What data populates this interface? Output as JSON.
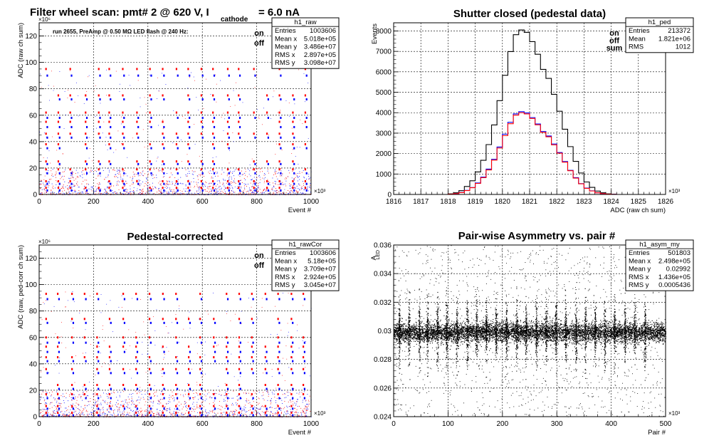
{
  "chart_data": [
    {
      "type": "scatter",
      "title": "Filter wheel scan: pmt#   2 @   620 V, I",
      "title_sub": "cathode",
      "title_tail": "= 6.0 nA",
      "annotation": "run 2655, PreAmp @ 0.50 MΩ   LED flash @  240 Hz:",
      "xlabel": "Event #",
      "ylabel": "ADC (raw ch sum)",
      "x_multiplier": "×10³",
      "y_multiplier": "×10⁶",
      "xlim": [
        0,
        1000000
      ],
      "ylim": [
        0,
        130000000
      ],
      "x_ticks": [
        "0",
        "200",
        "400",
        "600",
        "800",
        "1000"
      ],
      "y_ticks": [
        "0",
        "20",
        "40",
        "60",
        "80",
        "100",
        "120"
      ],
      "grid": true,
      "legend_position": "top-right",
      "series": [
        {
          "name": "on",
          "color": "#ff0000"
        },
        {
          "name": "off",
          "color": "#0000ff"
        }
      ],
      "levels_on": [
        95,
        75,
        62,
        55,
        46,
        38,
        25,
        19,
        10,
        5
      ],
      "levels_off": [
        90,
        72,
        58,
        51,
        43,
        35,
        23,
        16,
        8,
        3
      ],
      "stats": {
        "title": "h1_raw",
        "rows": [
          {
            "label": "Entries",
            "value": "1003606"
          },
          {
            "label": "Mean x",
            "value": "5.018e+05"
          },
          {
            "label": "Mean y",
            "value": "3.486e+07"
          },
          {
            "label": "RMS x",
            "value": "2.897e+05"
          },
          {
            "label": "RMS y",
            "value": "3.098e+07"
          }
        ]
      }
    },
    {
      "type": "line",
      "title": "Shutter closed (pedestal data)",
      "xlabel": "ADC (raw ch sum)",
      "ylabel": "Events",
      "x_multiplier": "×10³",
      "xlim": [
        1816,
        1826
      ],
      "ylim": [
        0,
        8400
      ],
      "x_ticks": [
        "1816",
        "1817",
        "1818",
        "1819",
        "1820",
        "1821",
        "1822",
        "1823",
        "1824",
        "1825",
        "1826"
      ],
      "y_ticks": [
        "0",
        "1000",
        "2000",
        "3000",
        "4000",
        "5000",
        "6000",
        "7000",
        "8000"
      ],
      "grid": true,
      "legend_position": "top-right",
      "x": [
        1818.0,
        1818.2,
        1818.4,
        1818.6,
        1818.8,
        1819.0,
        1819.2,
        1819.4,
        1819.6,
        1819.8,
        1820.0,
        1820.2,
        1820.4,
        1820.6,
        1820.8,
        1821.0,
        1821.2,
        1821.4,
        1821.6,
        1821.8,
        1822.0,
        1822.2,
        1822.4,
        1822.6,
        1822.8,
        1823.0,
        1823.2,
        1823.4,
        1823.6,
        1823.8,
        1824.0
      ],
      "series": [
        {
          "name": "on",
          "color": "#ff0000",
          "values": [
            15,
            40,
            90,
            190,
            330,
            540,
            820,
            1200,
            1680,
            2270,
            2880,
            3460,
            3880,
            4000,
            3940,
            3720,
            3410,
            3040,
            2820,
            2430,
            2020,
            1580,
            1160,
            800,
            520,
            300,
            170,
            80,
            40,
            15,
            5
          ]
        },
        {
          "name": "off",
          "color": "#0000ff",
          "values": [
            15,
            40,
            95,
            200,
            340,
            560,
            850,
            1240,
            1720,
            2320,
            2950,
            3530,
            3940,
            4050,
            3990,
            3760,
            3450,
            3080,
            2860,
            2470,
            2050,
            1610,
            1180,
            820,
            530,
            310,
            175,
            85,
            40,
            15,
            5
          ]
        },
        {
          "name": "sum",
          "color": "#000000",
          "values": [
            30,
            80,
            185,
            390,
            670,
            1100,
            1670,
            2440,
            3400,
            4590,
            5830,
            6990,
            7820,
            8050,
            7930,
            7480,
            6860,
            6120,
            5680,
            4900,
            4070,
            3190,
            2340,
            1620,
            1050,
            610,
            345,
            165,
            80,
            30,
            10
          ]
        }
      ],
      "stats": {
        "title": "h1_ped",
        "rows": [
          {
            "label": "Entries",
            "value": "213372"
          },
          {
            "label": "Mean",
            "value": "1.821e+06"
          },
          {
            "label": "RMS",
            "value": "1012"
          }
        ]
      }
    },
    {
      "type": "scatter",
      "title": "Pedestal-corrected",
      "xlabel": "Event #",
      "ylabel": "ADC (raw, ped-corr ch sum)",
      "x_multiplier": "×10³",
      "y_multiplier": "×10⁶",
      "xlim": [
        0,
        1000000
      ],
      "ylim": [
        0,
        130000000
      ],
      "x_ticks": [
        "0",
        "200",
        "400",
        "600",
        "800",
        "1000"
      ],
      "y_ticks": [
        "0",
        "20",
        "40",
        "60",
        "80",
        "100",
        "120"
      ],
      "grid": true,
      "legend_position": "top-right",
      "series": [
        {
          "name": "on",
          "color": "#ff0000"
        },
        {
          "name": "off",
          "color": "#0000ff"
        }
      ],
      "levels_on": [
        93,
        74,
        60,
        53,
        45,
        36,
        24,
        17,
        8,
        3
      ],
      "levels_off": [
        89,
        71,
        56,
        49,
        42,
        33,
        21,
        14,
        6,
        1
      ],
      "stats": {
        "title": "h1_rawCor",
        "rows": [
          {
            "label": "Entries",
            "value": "1003606"
          },
          {
            "label": "Mean x",
            "value": "5.18e+05"
          },
          {
            "label": "Mean y",
            "value": "3.709e+07"
          },
          {
            "label": "RMS x",
            "value": "2.924e+05"
          },
          {
            "label": "RMS y",
            "value": "3.045e+07"
          }
        ]
      }
    },
    {
      "type": "scatter",
      "title": "Pair-wise Asymmetry vs. pair #",
      "xlabel": "Pair #",
      "ylabel": "A",
      "ylabel_sub": "LED",
      "x_multiplier": "×10³",
      "xlim": [
        0,
        500000
      ],
      "ylim": [
        0.024,
        0.036
      ],
      "x_ticks": [
        "0",
        "100",
        "200",
        "300",
        "400",
        "500"
      ],
      "y_ticks": [
        "0.024",
        "0.026",
        "0.028",
        "0.03",
        "0.032",
        "0.034",
        "0.036"
      ],
      "grid": true,
      "band_center": 0.0299,
      "band_halfwidth": 0.0006,
      "spike_pairs": [
        10,
        28,
        47,
        62,
        80,
        97,
        116,
        135,
        152,
        170,
        188,
        207,
        226,
        243,
        262,
        280,
        298,
        316,
        335,
        352,
        370,
        388,
        406,
        425,
        443,
        462
      ],
      "stats": {
        "title": "h1_asym_my",
        "rows": [
          {
            "label": "Entries",
            "value": "501803"
          },
          {
            "label": "Mean x",
            "value": "2.498e+05"
          },
          {
            "label": "Mean y",
            "value": "0.02992"
          },
          {
            "label": "RMS x",
            "value": "1.436e+05"
          },
          {
            "label": "RMS y",
            "value": "0.0005436"
          }
        ]
      }
    }
  ]
}
